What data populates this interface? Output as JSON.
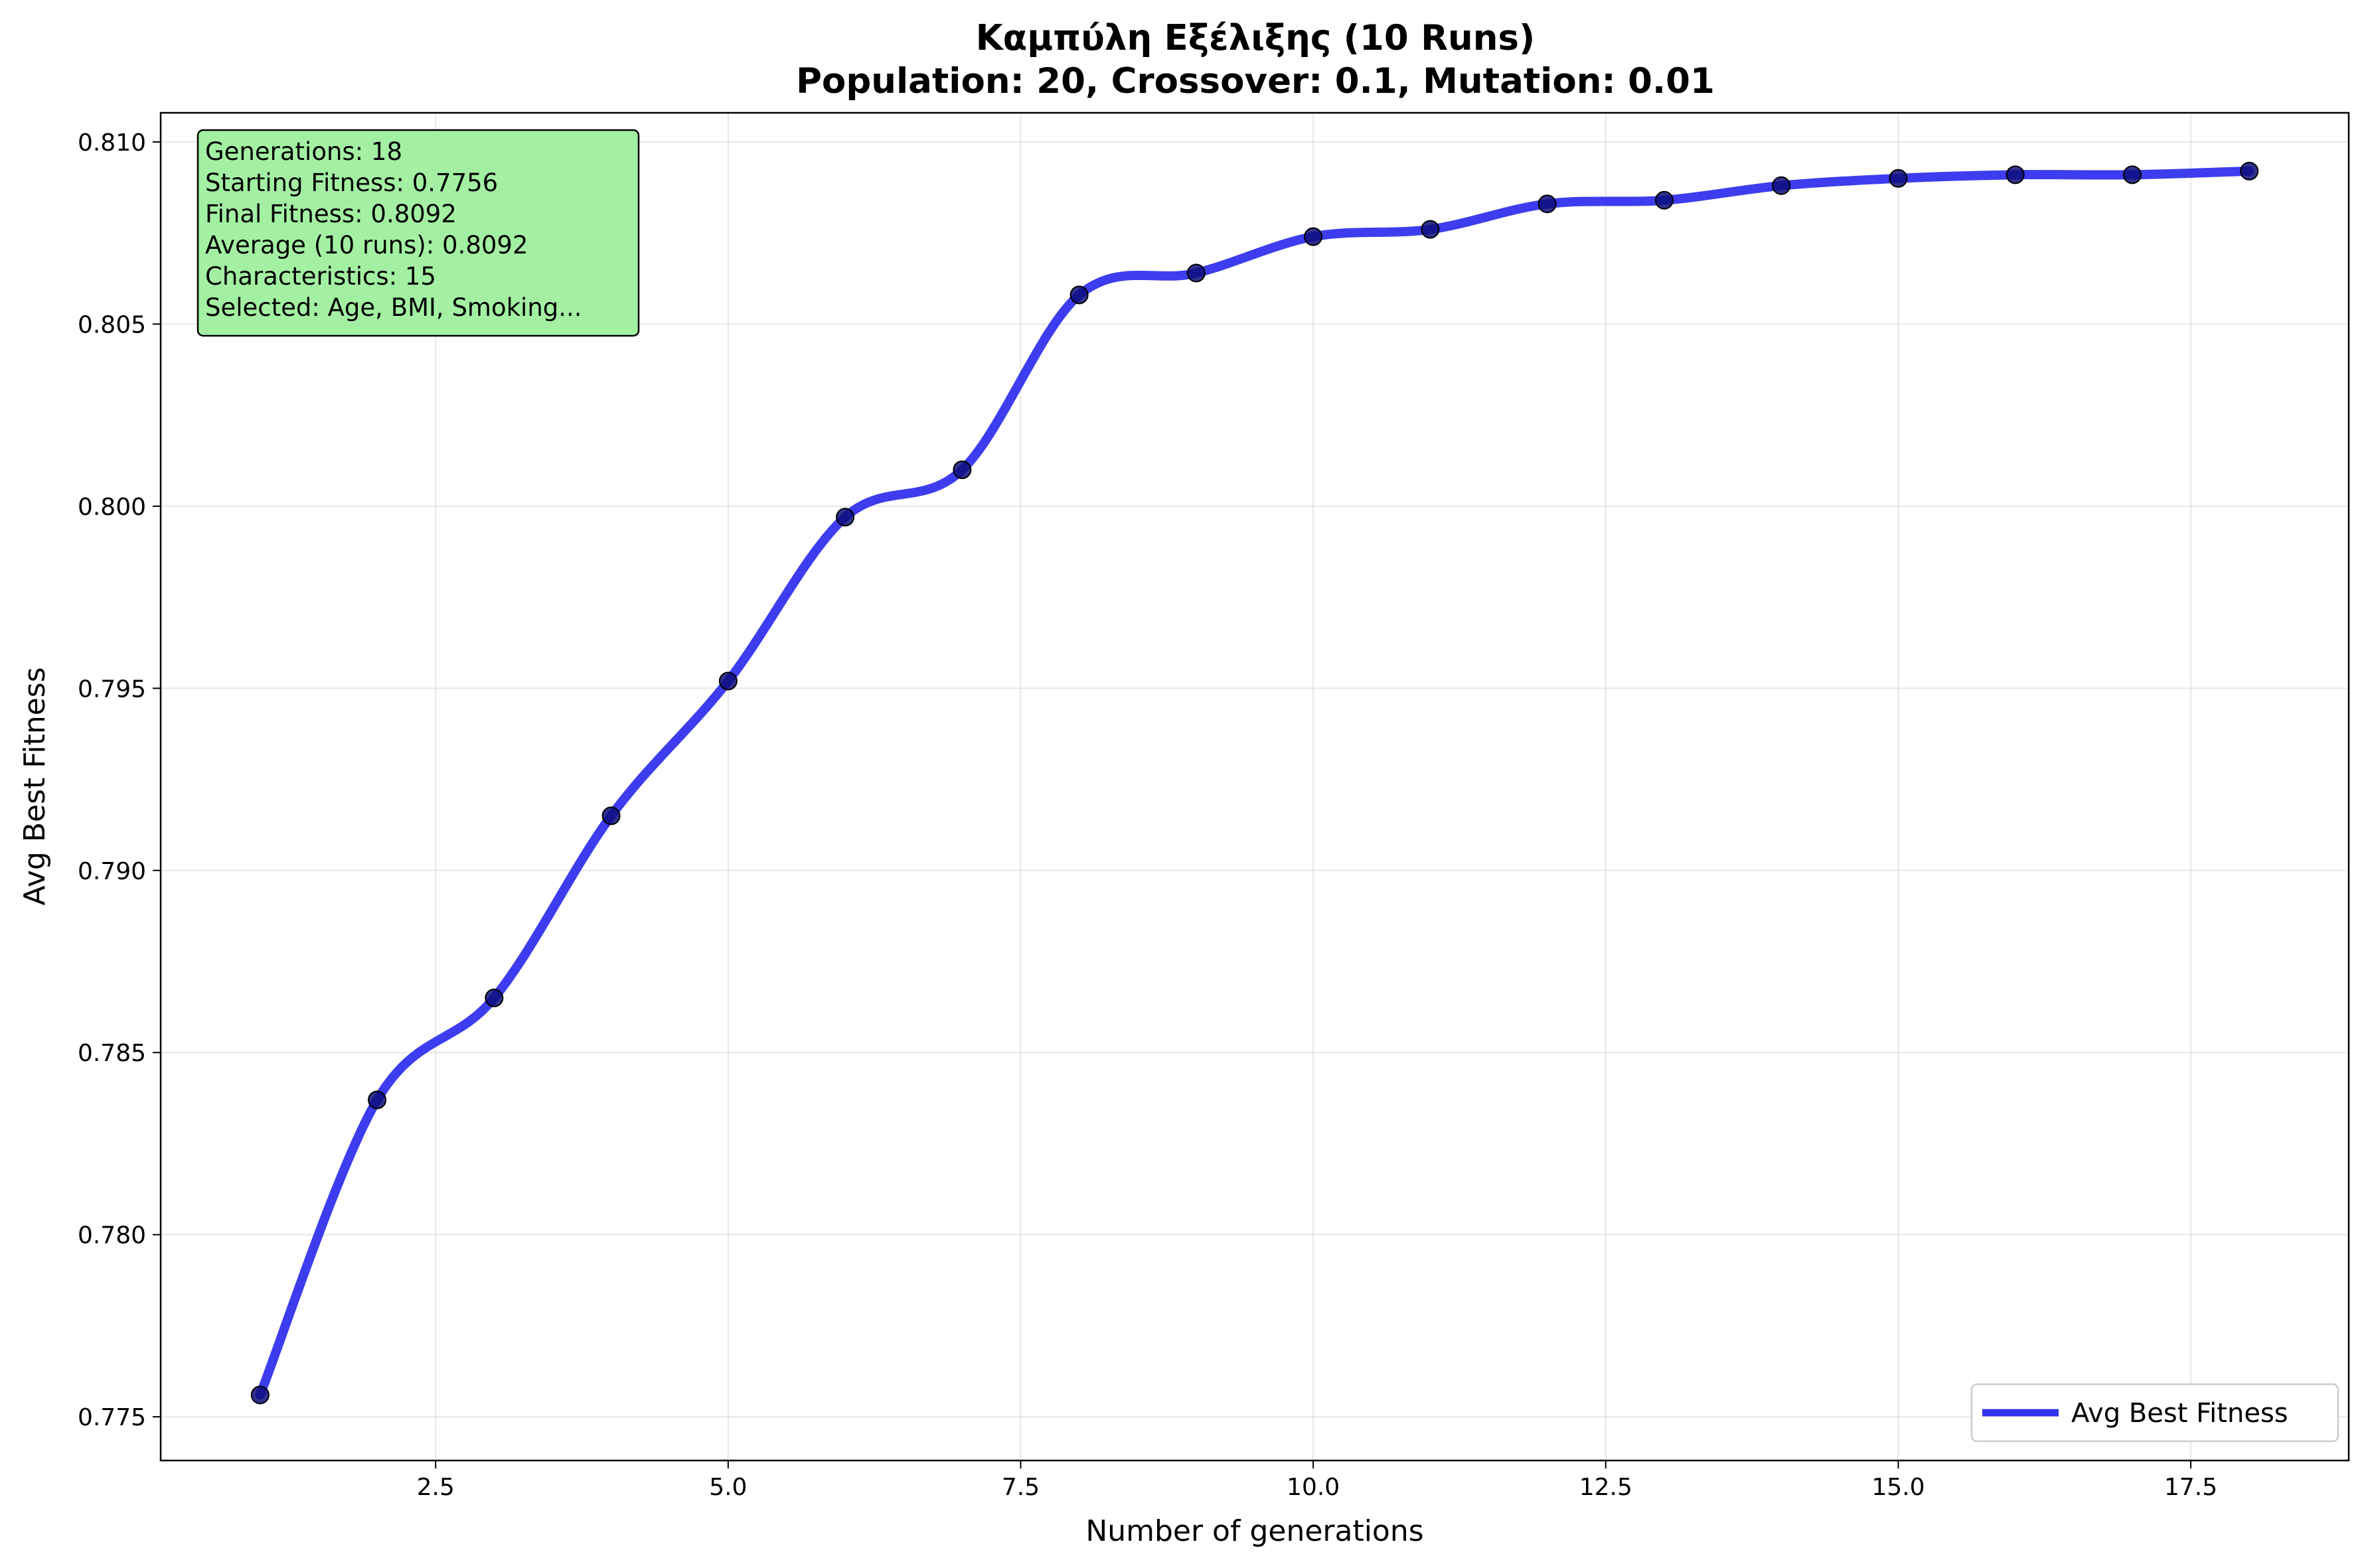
{
  "chart_data": {
    "type": "line",
    "title": "Καμπύλη Εξέλιξης (10 Runs)",
    "subtitle": "Population: 20, Crossover: 0.1, Mutation: 0.01",
    "xlabel": "Number of generations",
    "ylabel": "Avg Best Fitness",
    "xlim": [
      0.15,
      18.85
    ],
    "ylim": [
      0.7738,
      0.8108
    ],
    "x_ticks": [
      2.5,
      5.0,
      7.5,
      10.0,
      12.5,
      15.0,
      17.5
    ],
    "x_tick_labels": [
      "2.5",
      "5.0",
      "7.5",
      "10.0",
      "12.5",
      "15.0",
      "17.5"
    ],
    "y_ticks": [
      0.775,
      0.78,
      0.785,
      0.79,
      0.795,
      0.8,
      0.805,
      0.81
    ],
    "y_tick_labels": [
      "0.775",
      "0.780",
      "0.785",
      "0.790",
      "0.795",
      "0.800",
      "0.805",
      "0.810"
    ],
    "grid": true,
    "legend_position": "lower-right",
    "series": [
      {
        "name": "Avg Best Fitness",
        "color": "#3333ee",
        "marker_color": "#0d0d7a",
        "x": [
          1,
          2,
          3,
          4,
          5,
          6,
          7,
          8,
          9,
          10,
          11,
          12,
          13,
          14,
          15,
          16,
          17,
          18
        ],
        "values": [
          0.7756,
          0.7837,
          0.7865,
          0.7915,
          0.7952,
          0.7997,
          0.801,
          0.8058,
          0.8064,
          0.8074,
          0.8076,
          0.8083,
          0.8084,
          0.8088,
          0.809,
          0.8091,
          0.8091,
          0.8092
        ]
      }
    ],
    "annotation_box": {
      "background": "#a3f0a3",
      "lines": [
        "Generations: 18",
        "Starting Fitness: 0.7756",
        "Final Fitness: 0.8092",
        "Average (10 runs): 0.8092",
        "Characteristics: 15",
        "Selected: Age, BMI, Smoking..."
      ]
    }
  }
}
